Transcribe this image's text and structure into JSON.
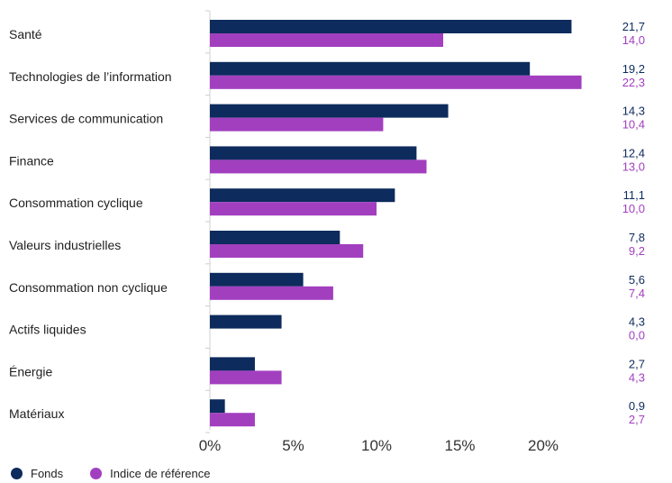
{
  "chart_data": {
    "type": "bar",
    "orientation": "horizontal",
    "categories": [
      "Santé",
      "Technologies de l’information",
      "Services de communication",
      "Finance",
      "Consommation cyclique",
      "Valeurs industrielles",
      "Consommation non cyclique",
      "Actifs liquides",
      "Énergie",
      "Matériaux"
    ],
    "series": [
      {
        "name": "Fonds",
        "color": "#0d2b5c",
        "values": [
          21.7,
          19.2,
          14.3,
          12.4,
          11.1,
          7.8,
          5.6,
          4.3,
          2.7,
          0.9
        ],
        "labels": [
          "21,7",
          "19,2",
          "14,3",
          "12,4",
          "11,1",
          "7,8",
          "5,6",
          "4,3",
          "2,7",
          "0,9"
        ]
      },
      {
        "name": "Indice de référence",
        "color": "#a23fbf",
        "values": [
          14.0,
          22.3,
          10.4,
          13.0,
          10.0,
          9.2,
          7.4,
          0.0,
          4.3,
          2.7
        ],
        "labels": [
          "14,0",
          "22,3",
          "10,4",
          "13,0",
          "10,0",
          "9,2",
          "7,4",
          "0,0",
          "4,3",
          "2,7"
        ]
      }
    ],
    "x_ticks": [
      "0%",
      "5%",
      "10%",
      "15%",
      "20%"
    ],
    "x_tick_values": [
      0,
      5,
      10,
      15,
      20
    ],
    "xlim": [
      0,
      25
    ],
    "grid": false,
    "legend_position": "bottom-left"
  },
  "legend": {
    "fonds_label": "Fonds",
    "indice_label": "Indice de référence"
  }
}
